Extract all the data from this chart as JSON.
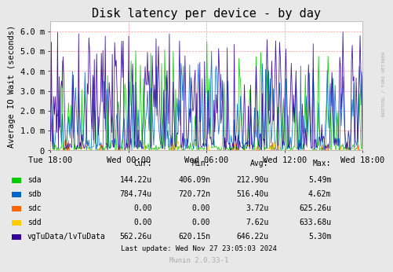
{
  "title": "Disk latency per device - by day",
  "ylabel": "Average IO Wait (seconds)",
  "background_color": "#e8e8e8",
  "plot_bg_color": "#ffffff",
  "grid_color": "#ff9999",
  "ylim": [
    0,
    0.0065
  ],
  "yticks": [
    0,
    0.001,
    0.002,
    0.003,
    0.004,
    0.005,
    0.006
  ],
  "ytick_labels": [
    "0",
    "1.0 m",
    "2.0 m",
    "3.0 m",
    "4.0 m",
    "5.0 m",
    "6.0 m"
  ],
  "xtick_labels": [
    "Tue 18:00",
    "Wed 00:00",
    "Wed 06:00",
    "Wed 12:00",
    "Wed 18:00"
  ],
  "num_points": 400,
  "series": [
    {
      "name": "sda",
      "color": "#00cc00",
      "max_val": 0.00549,
      "base_val": 0.00015,
      "spike_freq": 0.05
    },
    {
      "name": "sdb",
      "color": "#0066cc",
      "max_val": 0.00462,
      "base_val": 0.0004,
      "spike_freq": 0.08
    },
    {
      "name": "sdc",
      "color": "#ff6600",
      "max_val": 0.000625,
      "base_val": 0,
      "spike_freq": 0.01
    },
    {
      "name": "sdd",
      "color": "#ffcc00",
      "max_val": 0.000634,
      "base_val": 0,
      "spike_freq": 0.01
    },
    {
      "name": "vgTuData/lvTuData",
      "color": "#330099",
      "max_val": 0.0053,
      "base_val": 0.0004,
      "spike_freq": 0.08
    }
  ],
  "legend_entries": [
    {
      "label": "sda",
      "color": "#00cc00",
      "cur": "144.22u",
      "min": "406.09n",
      "avg": "212.90u",
      "max": "5.49m"
    },
    {
      "label": "sdb",
      "color": "#0066cc",
      "cur": "784.74u",
      "min": "720.72n",
      "avg": "516.40u",
      "max": "4.62m"
    },
    {
      "label": "sdc",
      "color": "#ff6600",
      "cur": "0.00",
      "min": "0.00",
      "avg": "3.72u",
      "max": "625.26u"
    },
    {
      "label": "sdd",
      "color": "#ffcc00",
      "cur": "0.00",
      "min": "0.00",
      "avg": "7.62u",
      "max": "633.68u"
    },
    {
      "label": "vgTuData/lvTuData",
      "color": "#330099",
      "cur": "562.26u",
      "min": "620.15n",
      "avg": "646.22u",
      "max": "5.30m"
    }
  ],
  "footer_text": "Last update: Wed Nov 27 23:05:03 2024",
  "munin_text": "Munin 2.0.33-1",
  "rrdtool_text": "RRDTOOL / TOBI OETIKER",
  "title_fontsize": 11,
  "axis_fontsize": 7.5,
  "legend_fontsize": 7,
  "footer_fontsize": 6.5
}
